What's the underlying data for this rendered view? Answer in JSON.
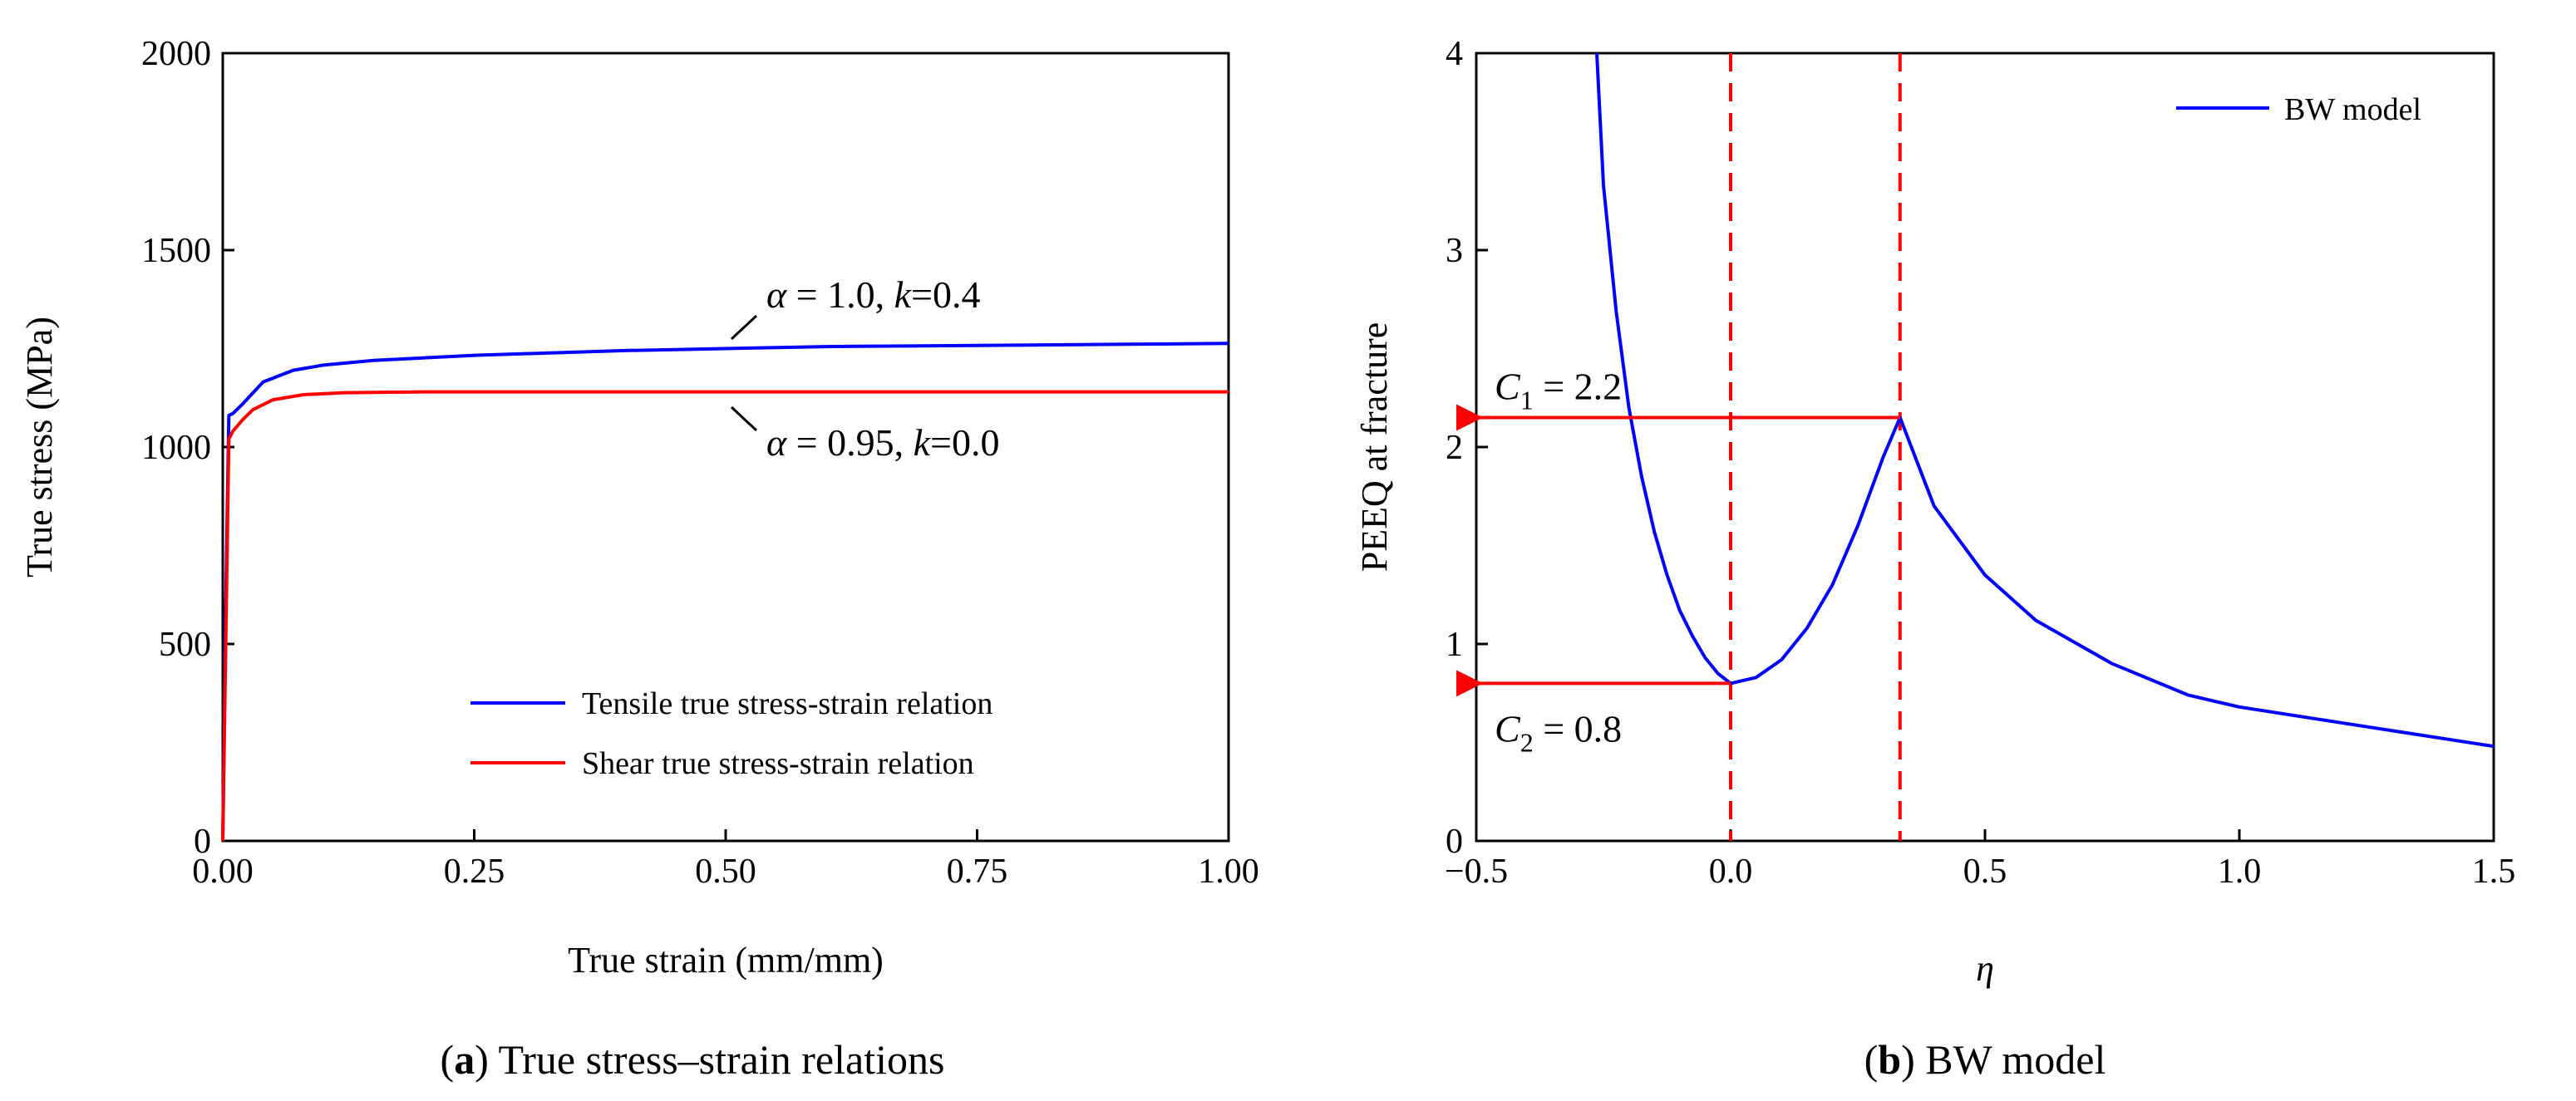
{
  "chart_data": [
    {
      "type": "line",
      "panel": "a",
      "caption_letter": "a",
      "caption_text": "True stress–strain relations",
      "xlabel": "True strain (mm/mm)",
      "ylabel": "True stress (MPa)",
      "xlim": [
        0,
        1
      ],
      "ylim": [
        0,
        2000
      ],
      "xticks": [
        "0.00",
        "0.25",
        "0.50",
        "0.75",
        "1.00"
      ],
      "yticks": [
        "0",
        "500",
        "1000",
        "1500",
        "2000"
      ],
      "grid": false,
      "legend_position": "bottom-right",
      "series": [
        {
          "name": "Tensile true stress-strain relation",
          "color": "#0000ff",
          "x": [
            0,
            0.003,
            0.006,
            0.01,
            0.02,
            0.04,
            0.07,
            0.1,
            0.15,
            0.25,
            0.4,
            0.5,
            0.6,
            0.75,
            0.9,
            1.0
          ],
          "y": [
            0,
            600,
            1080,
            1085,
            1110,
            1165,
            1195,
            1208,
            1220,
            1233,
            1245,
            1250,
            1255,
            1258,
            1261,
            1263
          ]
        },
        {
          "name": "Shear true stress-strain relation",
          "color": "#ff0000",
          "x": [
            0,
            0.003,
            0.006,
            0.01,
            0.02,
            0.03,
            0.05,
            0.08,
            0.12,
            0.2,
            0.4,
            0.6,
            0.8,
            1.0
          ],
          "y": [
            0,
            500,
            1020,
            1040,
            1070,
            1095,
            1120,
            1133,
            1138,
            1140,
            1140,
            1140,
            1140,
            1140
          ]
        }
      ],
      "annotations": [
        {
          "symbol": "α",
          "text": " = 1.0, ",
          "var": "k",
          "value": "=0.4",
          "series": 0
        },
        {
          "symbol": "α",
          "text": " = 0.95, ",
          "var": "k",
          "value": "=0.0",
          "series": 1
        }
      ]
    },
    {
      "type": "line",
      "panel": "b",
      "caption_letter": "b",
      "caption_text": "BW model",
      "xlabel": "η",
      "ylabel": "PEEQ at fracture",
      "xlim": [
        -0.5,
        1.5
      ],
      "ylim": [
        0,
        4
      ],
      "xticks": [
        "−0.5",
        "0.0",
        "0.5",
        "1.0",
        "1.5"
      ],
      "yticks": [
        "0",
        "1",
        "2",
        "3",
        "4"
      ],
      "grid": false,
      "legend_position": "top-right",
      "series": [
        {
          "name": "BW model",
          "color": "#0000ff",
          "x": [
            -0.263,
            -0.25,
            -0.225,
            -0.2,
            -0.175,
            -0.15,
            -0.125,
            -0.1,
            -0.075,
            -0.05,
            -0.025,
            0,
            0.05,
            0.1,
            0.15,
            0.2,
            0.25,
            0.3,
            0.333,
            0.4,
            0.5,
            0.6,
            0.75,
            0.9,
            1.0,
            1.2,
            1.35,
            1.5
          ],
          "y": [
            4.0,
            3.33,
            2.69,
            2.2,
            1.85,
            1.57,
            1.35,
            1.17,
            1.04,
            0.93,
            0.85,
            0.8,
            0.83,
            0.92,
            1.08,
            1.3,
            1.6,
            1.95,
            2.15,
            1.7,
            1.35,
            1.12,
            0.9,
            0.74,
            0.68,
            0.6,
            0.54,
            0.48
          ]
        }
      ],
      "vlines": [
        0.0,
        0.333
      ],
      "arrows": [
        {
          "label": "C",
          "sub": "1",
          "text": " = 2.2",
          "y": 2.15,
          "x_from": 0.333
        },
        {
          "label": "C",
          "sub": "2",
          "text": " = 0.8",
          "y": 0.8,
          "x_from": 0.0
        }
      ]
    }
  ]
}
